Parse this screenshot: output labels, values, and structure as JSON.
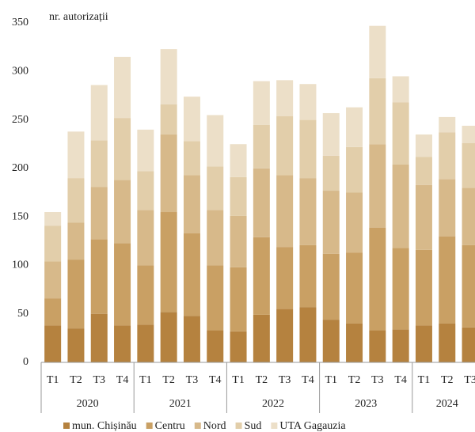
{
  "chart_data": {
    "type": "stacked_bar",
    "y_label": "nr. autorizații",
    "groups": [
      {
        "name": "2020",
        "categories": [
          "T1",
          "T2",
          "T3",
          "T4"
        ]
      },
      {
        "name": "2021",
        "categories": [
          "T1",
          "T2",
          "T3",
          "T4"
        ]
      },
      {
        "name": "2022",
        "categories": [
          "T1",
          "T2",
          "T3",
          "T4"
        ]
      },
      {
        "name": "2023",
        "categories": [
          "T1",
          "T2",
          "T3",
          "T4"
        ]
      },
      {
        "name": "2024",
        "categories": [
          "T1",
          "T2",
          "T3"
        ]
      }
    ],
    "series": [
      {
        "name": "mun. Chișinău",
        "color": "#b5823f",
        "values": [
          38,
          35,
          50,
          38,
          39,
          52,
          48,
          33,
          32,
          49,
          55,
          57,
          44,
          40,
          33,
          34,
          38,
          40,
          36
        ]
      },
      {
        "name": "Centru",
        "color": "#c9a064",
        "values": [
          28,
          71,
          77,
          85,
          61,
          103,
          85,
          67,
          66,
          80,
          64,
          64,
          68,
          73,
          106,
          84,
          78,
          90,
          85
        ]
      },
      {
        "name": "Nord",
        "color": "#d7b98a",
        "values": [
          38,
          38,
          54,
          65,
          57,
          80,
          60,
          57,
          53,
          71,
          74,
          69,
          65,
          62,
          86,
          86,
          67,
          59,
          59
        ]
      },
      {
        "name": "Sud",
        "color": "#e2ceaa",
        "values": [
          37,
          46,
          48,
          64,
          40,
          31,
          35,
          45,
          40,
          45,
          61,
          60,
          36,
          47,
          68,
          64,
          29,
          48,
          46
        ]
      },
      {
        "name": "UTA Gagauzia",
        "color": "#ecdfc8",
        "values": [
          14,
          48,
          57,
          63,
          43,
          57,
          46,
          53,
          34,
          45,
          37,
          37,
          44,
          41,
          54,
          27,
          23,
          16,
          18
        ]
      }
    ],
    "ylim": [
      0,
      350
    ],
    "yticks": [
      0,
      50,
      100,
      150,
      200,
      250,
      300,
      350
    ]
  }
}
